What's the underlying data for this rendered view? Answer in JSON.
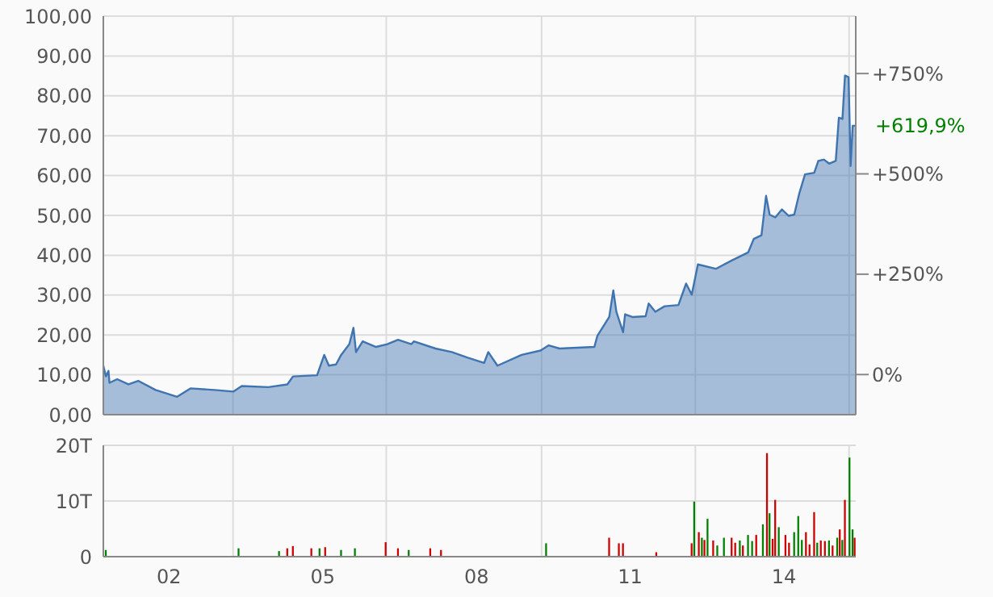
{
  "chart_data": [
    {
      "type": "area",
      "x": [
        2000.72,
        2000.77,
        2000.82,
        2000.84,
        2000.99,
        2001.21,
        2001.4,
        2001.74,
        2002.16,
        2002.42,
        2002.89,
        2003.26,
        2003.42,
        2003.94,
        2004.31,
        2004.42,
        2004.89,
        2005.03,
        2005.12,
        2005.26,
        2005.36,
        2005.52,
        2005.6,
        2005.65,
        2005.78,
        2006.04,
        2006.26,
        2006.47,
        2006.73,
        2006.78,
        2007.2,
        2007.52,
        2007.83,
        2008.15,
        2008.23,
        2008.41,
        2008.88,
        2009.25,
        2009.41,
        2009.62,
        2010.3,
        2010.36,
        2010.59,
        2010.67,
        2010.73,
        2010.86,
        2010.9,
        2011.04,
        2011.3,
        2011.36,
        2011.49,
        2011.67,
        2011.94,
        2012.09,
        2012.2,
        2012.32,
        2012.67,
        2012.98,
        2013.3,
        2013.41,
        2013.56,
        2013.65,
        2013.72,
        2013.83,
        2013.96,
        2014.09,
        2014.2,
        2014.3,
        2014.41,
        2014.59,
        2014.67,
        2014.78,
        2014.88,
        2015.01,
        2015.07,
        2015.14,
        2015.19,
        2015.26,
        2015.3,
        2015.34,
        2015.4
      ],
      "series": [
        {
          "color": "#3f74b1",
          "values": [
            12.3,
            9.6,
            11.0,
            8.0,
            8.9,
            7.6,
            8.5,
            6.2,
            4.5,
            6.6,
            6.2,
            5.8,
            7.2,
            6.9,
            7.6,
            9.6,
            9.9,
            15.0,
            12.3,
            12.6,
            15.0,
            17.7,
            21.8,
            15.7,
            18.4,
            17.0,
            17.7,
            18.8,
            17.7,
            18.4,
            16.6,
            15.7,
            14.3,
            13.0,
            15.7,
            12.3,
            15.0,
            16.1,
            17.4,
            16.6,
            17.0,
            19.8,
            24.5,
            31.2,
            25.8,
            20.7,
            25.2,
            24.5,
            24.7,
            27.9,
            25.8,
            27.2,
            27.5,
            32.9,
            30.1,
            37.7,
            36.6,
            38.7,
            40.7,
            44.1,
            45.0,
            54.9,
            50.2,
            49.5,
            51.5,
            49.9,
            50.2,
            55.6,
            60.3,
            60.7,
            63.7,
            64.0,
            63.0,
            63.7,
            74.5,
            74.2,
            85.1,
            84.7,
            62.4,
            72.5,
            72.5
          ]
        }
      ],
      "xlim": [
        2000.72,
        2015.4
      ],
      "xticks": [
        {
          "value": 2003.25,
          "label": null
        },
        {
          "value": 2006.24,
          "label": null
        },
        {
          "value": 2009.27,
          "label": null
        },
        {
          "value": 2012.27,
          "label": null
        },
        {
          "value": 2015.27,
          "label": null
        }
      ],
      "ylim": [
        0,
        100
      ],
      "yticks": [
        {
          "value": 0,
          "label": "0,00"
        },
        {
          "value": 10,
          "label": "10,00"
        },
        {
          "value": 20,
          "label": "20,00"
        },
        {
          "value": 30,
          "label": "30,00"
        },
        {
          "value": 40,
          "label": "40,00"
        },
        {
          "value": 50,
          "label": "50,00"
        },
        {
          "value": 60,
          "label": "60,00"
        },
        {
          "value": 70,
          "label": "70,00"
        },
        {
          "value": 80,
          "label": "80,00"
        },
        {
          "value": 90,
          "label": "90,00"
        },
        {
          "value": 100,
          "label": "100,00"
        }
      ],
      "y2lim": [
        -100,
        893
      ],
      "y2ticks": [
        {
          "value": 0,
          "label": "0%"
        },
        {
          "value": 250,
          "label": "+250%"
        },
        {
          "value": 500,
          "label": "+500%"
        },
        {
          "value": 750,
          "label": "+750%"
        }
      ],
      "annotations": [
        {
          "text": "+619,9%",
          "x": 2015.4,
          "y": 72.5
        }
      ],
      "tick_labels": "y",
      "grid": true
    },
    {
      "type": "bar",
      "x": [
        2000.77,
        2003.36,
        2004.15,
        2004.31,
        2004.42,
        2004.78,
        2004.94,
        2005.05,
        2005.36,
        2005.63,
        2006.23,
        2006.47,
        2006.68,
        2007.1,
        2007.31,
        2009.36,
        2010.59,
        2010.78,
        2010.86,
        2011.51,
        2012.2,
        2012.25,
        2012.34,
        2012.4,
        2012.45,
        2012.51,
        2012.62,
        2012.7,
        2012.83,
        2012.98,
        2013.05,
        2013.14,
        2013.2,
        2013.3,
        2013.38,
        2013.46,
        2013.59,
        2013.67,
        2013.72,
        2013.78,
        2013.83,
        2013.9,
        2014.03,
        2014.1,
        2014.2,
        2014.28,
        2014.35,
        2014.43,
        2014.5,
        2014.59,
        2014.65,
        2014.72,
        2014.8,
        2014.88,
        2014.95,
        2015.04,
        2015.09,
        2015.14,
        2015.19,
        2015.28,
        2015.34,
        2015.38
      ],
      "values": [
        1.2,
        1.5,
        1.0,
        1.5,
        1.9,
        1.5,
        1.5,
        1.7,
        1.2,
        1.5,
        2.6,
        1.5,
        1.2,
        1.5,
        1.2,
        2.4,
        3.4,
        2.4,
        2.4,
        0.8,
        2.4,
        9.9,
        4.4,
        3.4,
        3.0,
        6.8,
        2.9,
        2.0,
        3.4,
        3.4,
        2.5,
        2.9,
        2.0,
        3.9,
        2.8,
        3.9,
        5.8,
        18.6,
        7.8,
        3.2,
        10.2,
        5.3,
        3.9,
        2.5,
        4.4,
        7.3,
        3.0,
        4.4,
        2.2,
        8.0,
        2.5,
        2.9,
        2.8,
        2.9,
        2.0,
        3.4,
        4.9,
        3.0,
        10.2,
        17.8,
        4.9,
        3.4
      ],
      "colors": [
        "#008000",
        "#008000",
        "#008000",
        "#cc0000",
        "#cc0000",
        "#cc0000",
        "#008000",
        "#cc0000",
        "#008000",
        "#008000",
        "#cc0000",
        "#cc0000",
        "#008000",
        "#cc0000",
        "#cc0000",
        "#008000",
        "#cc0000",
        "#cc0000",
        "#cc0000",
        "#cc0000",
        "#cc0000",
        "#008000",
        "#cc0000",
        "#008000",
        "#cc0000",
        "#008000",
        "#cc0000",
        "#008000",
        "#008000",
        "#cc0000",
        "#cc0000",
        "#008000",
        "#cc0000",
        "#008000",
        "#008000",
        "#cc0000",
        "#008000",
        "#cc0000",
        "#008000",
        "#cc0000",
        "#cc0000",
        "#008000",
        "#cc0000",
        "#cc0000",
        "#008000",
        "#008000",
        "#008000",
        "#cc0000",
        "#cc0000",
        "#cc0000",
        "#008000",
        "#cc0000",
        "#cc0000",
        "#008000",
        "#cc0000",
        "#008000",
        "#cc0000",
        "#008000",
        "#cc0000",
        "#008000",
        "#008000",
        "#cc0000"
      ],
      "xlim": [
        2000.72,
        2015.4
      ],
      "xticks": [
        {
          "value": 2002,
          "label": "02"
        },
        {
          "value": 2003.25,
          "label": null
        },
        {
          "value": 2005,
          "label": "05"
        },
        {
          "value": 2006.24,
          "label": null
        },
        {
          "value": 2008,
          "label": "08"
        },
        {
          "value": 2009.27,
          "label": null
        },
        {
          "value": 2011,
          "label": "11"
        },
        {
          "value": 2012.27,
          "label": null
        },
        {
          "value": 2014,
          "label": "14"
        },
        {
          "value": 2015.27,
          "label": null
        }
      ],
      "ylim": [
        0,
        20
      ],
      "yticks": [
        0,
        {
          "value": 10,
          "label": "10T"
        },
        {
          "value": 20,
          "label": "20T"
        }
      ],
      "grid": true
    }
  ]
}
